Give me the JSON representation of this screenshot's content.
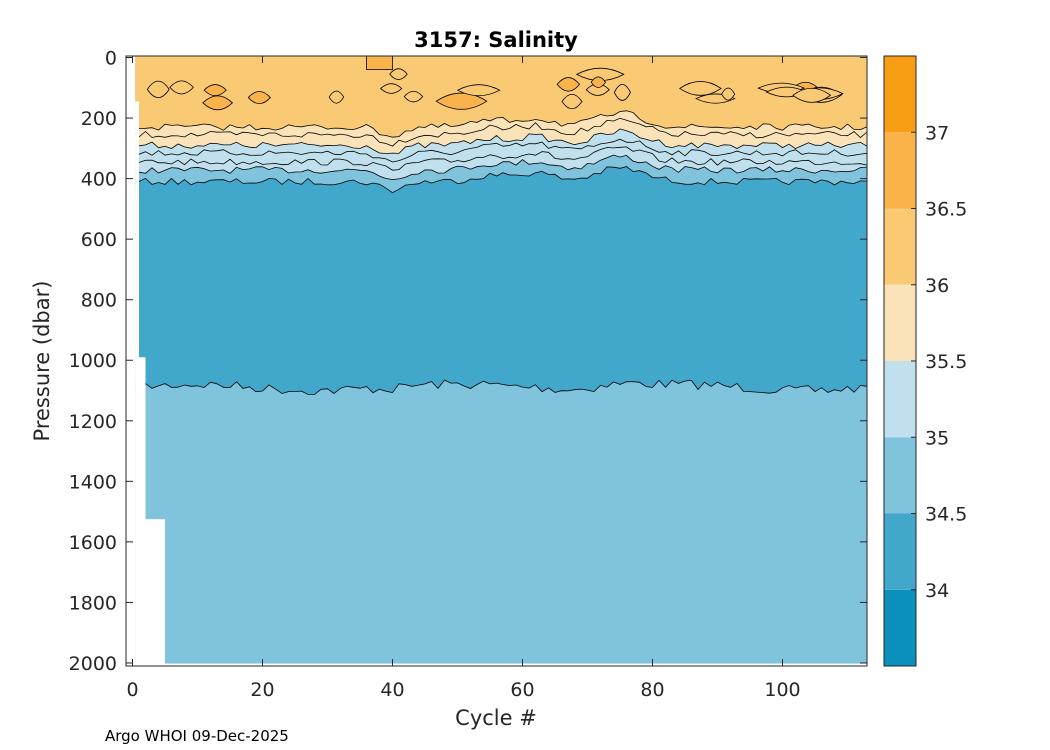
{
  "chart_data": {
    "type": "heatmap",
    "subtype": "filled-contour",
    "title": "3157:  Salinity",
    "xlabel": "Cycle #",
    "ylabel": "Pressure (dbar)",
    "xlim": [
      -1,
      113
    ],
    "ylim": [
      2010,
      -5
    ],
    "x_ticks": [
      0,
      20,
      40,
      60,
      80,
      100
    ],
    "y_ticks": [
      0,
      200,
      400,
      600,
      800,
      1000,
      1200,
      1400,
      1600,
      1800,
      2000
    ],
    "colorbar": {
      "range": [
        33.5,
        37.5
      ],
      "ticks": [
        34,
        34.5,
        35,
        35.5,
        36,
        36.5,
        37
      ],
      "levels": [
        {
          "from": 33.5,
          "to": 34.0,
          "color": "#0b8fbd"
        },
        {
          "from": 34.0,
          "to": 34.5,
          "color": "#41a8cc"
        },
        {
          "from": 34.5,
          "to": 35.0,
          "color": "#80c3dd"
        },
        {
          "from": 35.0,
          "to": 35.5,
          "color": "#bfe0ec"
        },
        {
          "from": 35.5,
          "to": 36.0,
          "color": "#fbe3b9"
        },
        {
          "from": 36.0,
          "to": 36.5,
          "color": "#fac974"
        },
        {
          "from": 36.5,
          "to": 37.0,
          "color": "#fab24a"
        },
        {
          "from": 37.0,
          "to": 37.5,
          "color": "#f99d15"
        }
      ]
    },
    "contour_depths_approx": [
      {
        "level": 36.0,
        "pressure": 230
      },
      {
        "level": 35.9,
        "pressure": 255
      },
      {
        "level": 35.5,
        "pressure": 290
      },
      {
        "level": 35.3,
        "pressure": 315
      },
      {
        "level": 35.1,
        "pressure": 345
      },
      {
        "level": 35.0,
        "pressure": 372
      },
      {
        "level": 34.7,
        "pressure": 410
      },
      {
        "level": 34.5,
        "pressure": 1090
      }
    ],
    "deepest_profile": [
      {
        "cycle": 1,
        "pressure": 990
      },
      {
        "cycle": 2,
        "pressure": 1525
      },
      {
        "cycle": 5,
        "pressure": 2000
      }
    ],
    "footnote": "Argo WHOI 09-Dec-2025"
  }
}
